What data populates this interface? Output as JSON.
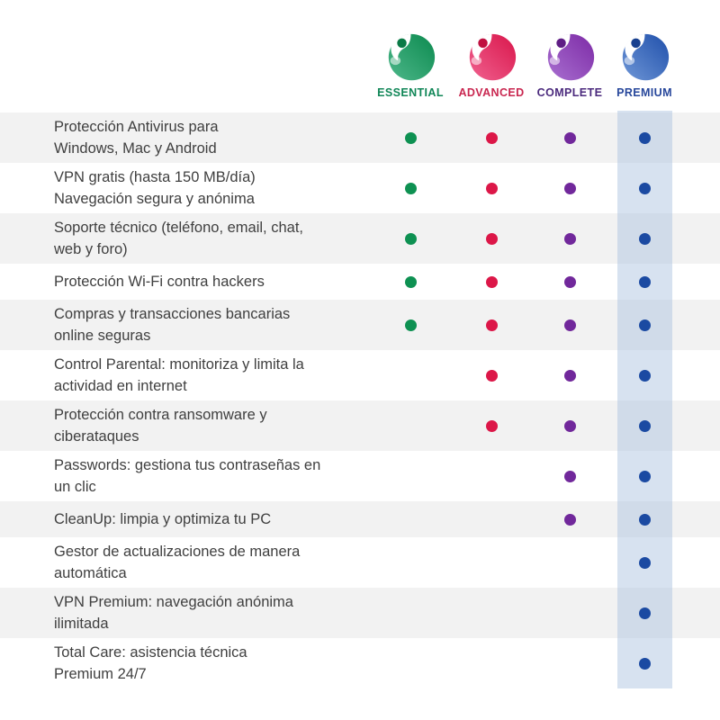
{
  "page": {
    "background": "#ffffff",
    "alt_row_color": "#f2f2f2",
    "feature_text_color": "#3f3f3f",
    "premium_band_color": "rgba(167,190,221,0.45)"
  },
  "plans": [
    {
      "id": "essential",
      "label": "ESSENTIAL",
      "label_color": "#108657",
      "dot_color": "#0e9152",
      "logo_light": "#4db78a",
      "logo_dark": "#0c8a4f",
      "logo_ear": "#0a7a46",
      "highlighted": false
    },
    {
      "id": "advanced",
      "label": "ADVANCED",
      "label_color": "#c92750",
      "dot_color": "#dc1748",
      "logo_light": "#f0618f",
      "logo_dark": "#d9164b",
      "logo_ear": "#c01040",
      "highlighted": false
    },
    {
      "id": "complete",
      "label": "COMPLETE",
      "label_color": "#4b2a7d",
      "dot_color": "#71289b",
      "logo_light": "#a86fd0",
      "logo_dark": "#7d2ba6",
      "logo_ear": "#5f1d85",
      "highlighted": false
    },
    {
      "id": "premium",
      "label": "PREMIUM",
      "label_color": "#27479b",
      "dot_color": "#1b4aa2",
      "logo_light": "#6e96d6",
      "logo_dark": "#2050ab",
      "logo_ear": "#173f8f",
      "highlighted": true
    }
  ],
  "features": [
    {
      "text": "Protección Antivirus para\nWindows, Mac y Android",
      "included": [
        true,
        true,
        true,
        true
      ]
    },
    {
      "text": "VPN gratis (hasta 150 MB/día)\nNavegación segura y anónima",
      "included": [
        true,
        true,
        true,
        true
      ]
    },
    {
      "text": "Soporte técnico (teléfono, email, chat,\nweb y foro)",
      "included": [
        true,
        true,
        true,
        true
      ]
    },
    {
      "text": "Protección Wi-Fi contra hackers",
      "included": [
        true,
        true,
        true,
        true
      ]
    },
    {
      "text": "Compras y transacciones bancarias\nonline seguras",
      "included": [
        true,
        true,
        true,
        true
      ]
    },
    {
      "text": "Control Parental: monitoriza y limita la\nactividad en internet",
      "included": [
        false,
        true,
        true,
        true
      ]
    },
    {
      "text": "Protección contra ransomware y\nciberataques",
      "included": [
        false,
        true,
        true,
        true
      ]
    },
    {
      "text": "Passwords: gestiona tus contraseñas en\nun clic",
      "included": [
        false,
        false,
        true,
        true
      ]
    },
    {
      "text": "CleanUp: limpia y optimiza tu PC",
      "included": [
        false,
        false,
        true,
        true
      ]
    },
    {
      "text": "Gestor de actualizaciones de manera\nautomática",
      "included": [
        false,
        false,
        false,
        true
      ]
    },
    {
      "text": "VPN Premium: navegación anónima\nilimitada",
      "included": [
        false,
        false,
        false,
        true
      ]
    },
    {
      "text": "Total Care: asistencia técnica\nPremium 24/7",
      "included": [
        false,
        false,
        false,
        true
      ]
    }
  ]
}
